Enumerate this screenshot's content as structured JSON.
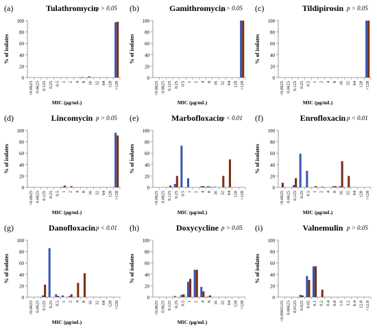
{
  "colors": {
    "series1": "#3b56b5",
    "series2": "#7a2f12",
    "axis": "#808080"
  },
  "chart_data": [
    {
      "panel_label": "(a)",
      "title": "Tulathromycin",
      "p_label": "p > 0.05",
      "type": "bar",
      "ylabel": "% of isolates",
      "xlabel": "MIC (μg/mL)",
      "ylim": [
        0,
        100
      ],
      "yticks": [
        0,
        20,
        40,
        60,
        80,
        100
      ],
      "categories": [
        "<0.0625",
        "0.0625",
        "0.125",
        "0.25",
        "0.5",
        "1",
        "2",
        "4",
        "8",
        "16",
        "32",
        "64",
        "128",
        ">128"
      ],
      "series": [
        {
          "values": [
            0,
            0,
            0,
            0,
            0,
            0,
            0,
            0,
            1,
            2,
            0,
            0,
            0,
            97
          ]
        },
        {
          "values": [
            0,
            0,
            0,
            0,
            0,
            0,
            0,
            0,
            0,
            0,
            0,
            0,
            0,
            98
          ]
        }
      ]
    },
    {
      "panel_label": "(b)",
      "title": "Gamithromycin",
      "p_label": "p > 0.05",
      "type": "bar",
      "ylabel": "% of isolates",
      "xlabel": "MIC (μg/mL)",
      "ylim": [
        0,
        100
      ],
      "yticks": [
        0,
        20,
        40,
        60,
        80,
        100
      ],
      "categories": [
        "<0.0625",
        "0.0625",
        "0.125",
        "0.25",
        "0.5",
        "1",
        "2",
        "4",
        "8",
        "16",
        "32",
        "64",
        "128",
        ">128"
      ],
      "series": [
        {
          "values": [
            0,
            0,
            0,
            0,
            0,
            0,
            0,
            0,
            0,
            0,
            0,
            0,
            0,
            100
          ]
        },
        {
          "values": [
            0,
            0,
            0,
            0,
            0,
            0,
            0,
            0,
            0,
            0,
            0,
            0,
            0,
            100
          ]
        }
      ]
    },
    {
      "panel_label": "(c)",
      "title": "Tildipirosin",
      "p_label": "p > 0.05",
      "type": "bar",
      "ylabel": "% of isolates",
      "xlabel": "MIC (μg/mL)",
      "ylim": [
        0,
        100
      ],
      "yticks": [
        0,
        20,
        40,
        60,
        80,
        100
      ],
      "categories": [
        "<0.0625",
        "0.0625",
        "0.125",
        "0.25",
        "0.5",
        "1",
        "2",
        "4",
        "8",
        "16",
        "32",
        "64",
        "128",
        ">128"
      ],
      "series": [
        {
          "values": [
            0,
            0,
            0,
            0,
            0,
            0,
            0,
            0,
            0,
            0,
            0,
            0,
            0,
            100
          ]
        },
        {
          "values": [
            0,
            0,
            0,
            0,
            0,
            0,
            0,
            0,
            0,
            0,
            0,
            0,
            0,
            100
          ]
        }
      ]
    },
    {
      "panel_label": "(d)",
      "title": "Lincomycin",
      "p_label": "p > 0.05",
      "type": "bar",
      "ylabel": "% of isolates",
      "xlabel": "MIC (μg/mL)",
      "ylim": [
        0,
        100
      ],
      "yticks": [
        0,
        20,
        40,
        60,
        80,
        100
      ],
      "categories": [
        "<0.0625",
        "0.0625",
        "0.125",
        "0.25",
        "0.5",
        "1",
        "2",
        "4",
        "8",
        "16",
        "32",
        "64",
        "128",
        ">128"
      ],
      "series": [
        {
          "values": [
            0,
            0,
            0,
            0,
            0,
            1,
            0,
            0,
            0,
            0,
            0,
            0,
            0,
            96
          ]
        },
        {
          "values": [
            0,
            0,
            0,
            0,
            0,
            3,
            2,
            0,
            0,
            0,
            0,
            0,
            0,
            91
          ]
        }
      ]
    },
    {
      "panel_label": "(e)",
      "title": "Marbofloxacin",
      "p_label": "p < 0.01",
      "type": "bar",
      "ylabel": "% of isolates",
      "xlabel": "MIC (μg/mL)",
      "ylim": [
        0,
        100
      ],
      "yticks": [
        0,
        20,
        40,
        60,
        80,
        100
      ],
      "categories": [
        "<0.0625",
        "0.0625",
        "0.125",
        "0.25",
        "0.5",
        "1",
        "2",
        "4",
        "8",
        "16",
        "32",
        "64",
        "128",
        ">128"
      ],
      "series": [
        {
          "values": [
            0,
            0,
            0,
            6,
            73,
            16,
            0,
            2,
            2,
            1,
            0,
            0,
            0,
            0
          ]
        },
        {
          "values": [
            0,
            0,
            3,
            20,
            0,
            0,
            0,
            2,
            1,
            0,
            20,
            49,
            0,
            0
          ]
        }
      ]
    },
    {
      "panel_label": "(f)",
      "title": "Enrofloxacin",
      "p_label": "p < 0.01",
      "type": "bar",
      "ylabel": "% of isolates",
      "xlabel": "MIC (μg/mL)",
      "ylim": [
        0,
        100
      ],
      "yticks": [
        0,
        20,
        40,
        60,
        80,
        100
      ],
      "categories": [
        "<0.0625",
        "0.0625",
        "0.125",
        "0.25",
        "0.5",
        "1",
        "2",
        "4",
        "8",
        "16",
        "32",
        "64",
        "128",
        ">128"
      ],
      "series": [
        {
          "values": [
            0,
            0,
            4,
            59,
            29,
            0,
            0,
            0,
            2,
            2,
            0,
            0,
            0,
            0
          ]
        },
        {
          "values": [
            8,
            0,
            16,
            0,
            0,
            2,
            1,
            0,
            2,
            46,
            20,
            0,
            0,
            0
          ]
        }
      ]
    },
    {
      "panel_label": "(g)",
      "title": "Danofloxacin",
      "p_label": "p < 0.01",
      "type": "bar",
      "ylabel": "% of isolates",
      "xlabel": "MIC (μg/mL)",
      "ylim": [
        0,
        100
      ],
      "yticks": [
        0,
        20,
        40,
        60,
        80,
        100
      ],
      "categories": [
        "<0.0625",
        "0.0625",
        "0.125",
        "0.25",
        "0.5",
        "1",
        "2",
        "4",
        "8",
        "16",
        "32",
        "64",
        "128",
        ">128"
      ],
      "series": [
        {
          "values": [
            0,
            0,
            3,
            86,
            5,
            3,
            2,
            0,
            0,
            0,
            0,
            0,
            0,
            0
          ]
        },
        {
          "values": [
            0,
            0,
            22,
            0,
            2,
            0,
            5,
            25,
            42,
            0,
            0,
            0,
            0,
            0
          ]
        }
      ]
    },
    {
      "panel_label": "(h)",
      "title": "Doxycycline",
      "p_label": "p > 0.05",
      "type": "bar",
      "ylabel": "% of isolates",
      "xlabel": "MIC (μg/mL)",
      "ylim": [
        0,
        100
      ],
      "yticks": [
        0,
        20,
        40,
        60,
        80,
        100
      ],
      "categories": [
        "<0.0625",
        "0.0625",
        "0.125",
        "0.25",
        "0.5",
        "1",
        "2",
        "4",
        "8",
        "16",
        "32",
        "64",
        "128",
        ">128"
      ],
      "series": [
        {
          "values": [
            0,
            0,
            0,
            2,
            4,
            27,
            48,
            18,
            1,
            0,
            0,
            0,
            0,
            0
          ]
        },
        {
          "values": [
            0,
            0,
            0,
            0,
            5,
            32,
            48,
            10,
            3,
            0,
            0,
            0,
            0,
            0
          ]
        }
      ]
    },
    {
      "panel_label": "(i)",
      "title": "Valnemulin",
      "p_label": "p > 0.05",
      "type": "bar",
      "ylabel": "% of isolates",
      "xlabel": "",
      "ylim": [
        0,
        100
      ],
      "yticks": [
        0,
        20,
        40,
        60,
        80,
        100
      ],
      "categories": [
        "<0.0003125",
        "0.00625",
        "0.0125",
        "0.025",
        "0.05",
        "0.1",
        "0.2",
        "0.4",
        "0.8",
        "1.6",
        "3.2",
        "6.4",
        "12.8",
        ">12.8"
      ],
      "series": [
        {
          "values": [
            0,
            0,
            0,
            4,
            37,
            54,
            0,
            0,
            0,
            0,
            0,
            0,
            0,
            0
          ]
        },
        {
          "values": [
            0,
            0,
            0,
            3,
            30,
            54,
            13,
            0,
            0,
            0,
            0,
            0,
            0,
            0
          ]
        }
      ]
    }
  ]
}
